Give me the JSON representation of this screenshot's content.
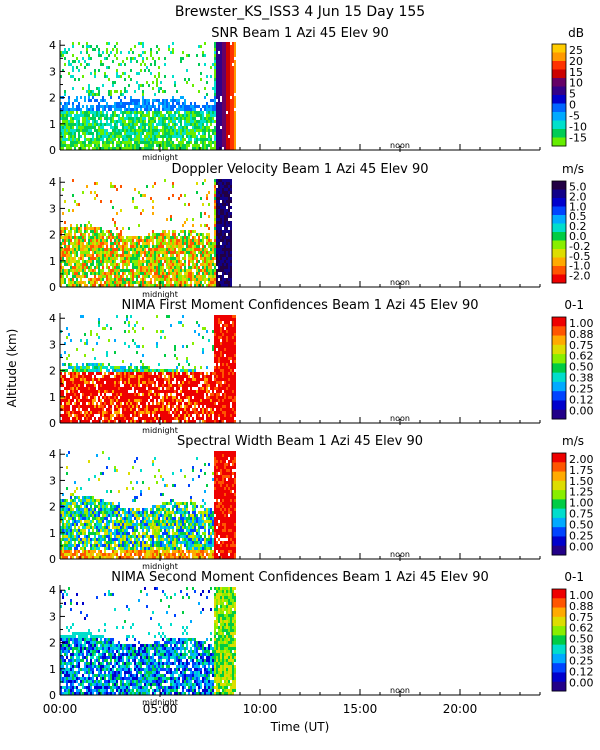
{
  "main_title": "Brewster_KS_ISS3   4 Jun 15 Day 155",
  "y_axis_label": "Altitude (km)",
  "x_axis_label": "Time (UT)",
  "x_ticks": [
    "00:00",
    "05:00",
    "10:00",
    "15:00",
    "20:00"
  ],
  "y_ticks": [
    "0",
    "1",
    "2",
    "3",
    "4"
  ],
  "midnight_label": "midnight",
  "noon_label": "noon",
  "chart_data": [
    {
      "type": "heatmap",
      "title": "SNR Beam 1 Azi  45 Elev 90",
      "unit": "dB",
      "colorbar_labels": [
        "25",
        "20",
        "15",
        "10",
        "5",
        "0",
        "-5",
        "-10",
        "-15"
      ],
      "colorbar_colors": [
        "#ffcc00",
        "#ff9900",
        "#ff3300",
        "#cc0000",
        "#660066",
        "#330088",
        "#0000cc",
        "#0066ff",
        "#00aaff",
        "#00e0cc",
        "#00cc55",
        "#66ee00"
      ],
      "x_range_hours": [
        0,
        24
      ],
      "y_range_km": [
        0,
        4.2
      ],
      "data_extent_hours": [
        0,
        8.8
      ]
    },
    {
      "type": "heatmap",
      "title": "Doppler Velocity Beam 1 Azi  45 Elev 90",
      "unit": "m/s",
      "colorbar_labels": [
        "5.0",
        "2.0",
        "1.0",
        "0.5",
        "0.2",
        "0.0",
        "-0.2",
        "-0.5",
        "-1.0",
        "-2.0"
      ],
      "colorbar_colors": [
        "#220044",
        "#110088",
        "#0000cc",
        "#0044ff",
        "#00aaff",
        "#00ddcc",
        "#00cc44",
        "#88ee00",
        "#dddd00",
        "#ffaa00",
        "#ff5500",
        "#ee0000"
      ],
      "x_range_hours": [
        0,
        24
      ],
      "y_range_km": [
        0,
        4.2
      ],
      "data_extent_hours": [
        0,
        8.6
      ]
    },
    {
      "type": "heatmap",
      "title": "NIMA First Moment Confidences Beam 1 Azi  45 Elev 90",
      "unit": "0-1",
      "colorbar_labels": [
        "1.00",
        "0.88",
        "0.75",
        "0.62",
        "0.50",
        "0.38",
        "0.25",
        "0.12",
        "0.00"
      ],
      "colorbar_colors": [
        "#ee0000",
        "#ff5500",
        "#ffaa00",
        "#dddd00",
        "#88ee00",
        "#00cc44",
        "#00ddcc",
        "#00aaff",
        "#0044ff",
        "#0000cc",
        "#220088"
      ],
      "x_range_hours": [
        0,
        24
      ],
      "y_range_km": [
        0,
        4.2
      ],
      "data_extent_hours": [
        0,
        8.8
      ]
    },
    {
      "type": "heatmap",
      "title": "Spectral Width Beam 1 Azi  45 Elev 90",
      "unit": "m/s",
      "colorbar_labels": [
        "2.00",
        "1.75",
        "1.50",
        "1.25",
        "1.00",
        "0.75",
        "0.50",
        "0.25",
        "0.00"
      ],
      "colorbar_colors": [
        "#ee0000",
        "#ff5500",
        "#ffaa00",
        "#dddd00",
        "#88ee00",
        "#00cc44",
        "#00ddcc",
        "#00aaff",
        "#0044ff",
        "#0000cc",
        "#220088"
      ],
      "x_range_hours": [
        0,
        24
      ],
      "y_range_km": [
        0,
        4.2
      ],
      "data_extent_hours": [
        0,
        8.8
      ]
    },
    {
      "type": "heatmap",
      "title": "NIMA Second Moment Confidences Beam 1 Azi  45 Elev 90",
      "unit": "0-1",
      "colorbar_labels": [
        "1.00",
        "0.88",
        "0.75",
        "0.62",
        "0.50",
        "0.38",
        "0.25",
        "0.12",
        "0.00"
      ],
      "colorbar_colors": [
        "#ee0000",
        "#ff5500",
        "#ffaa00",
        "#dddd00",
        "#88ee00",
        "#00cc44",
        "#00ddcc",
        "#00aaff",
        "#0044ff",
        "#0000cc",
        "#220088"
      ],
      "x_range_hours": [
        0,
        24
      ],
      "y_range_km": [
        0,
        4.2
      ],
      "data_extent_hours": [
        0,
        8.8
      ]
    }
  ]
}
